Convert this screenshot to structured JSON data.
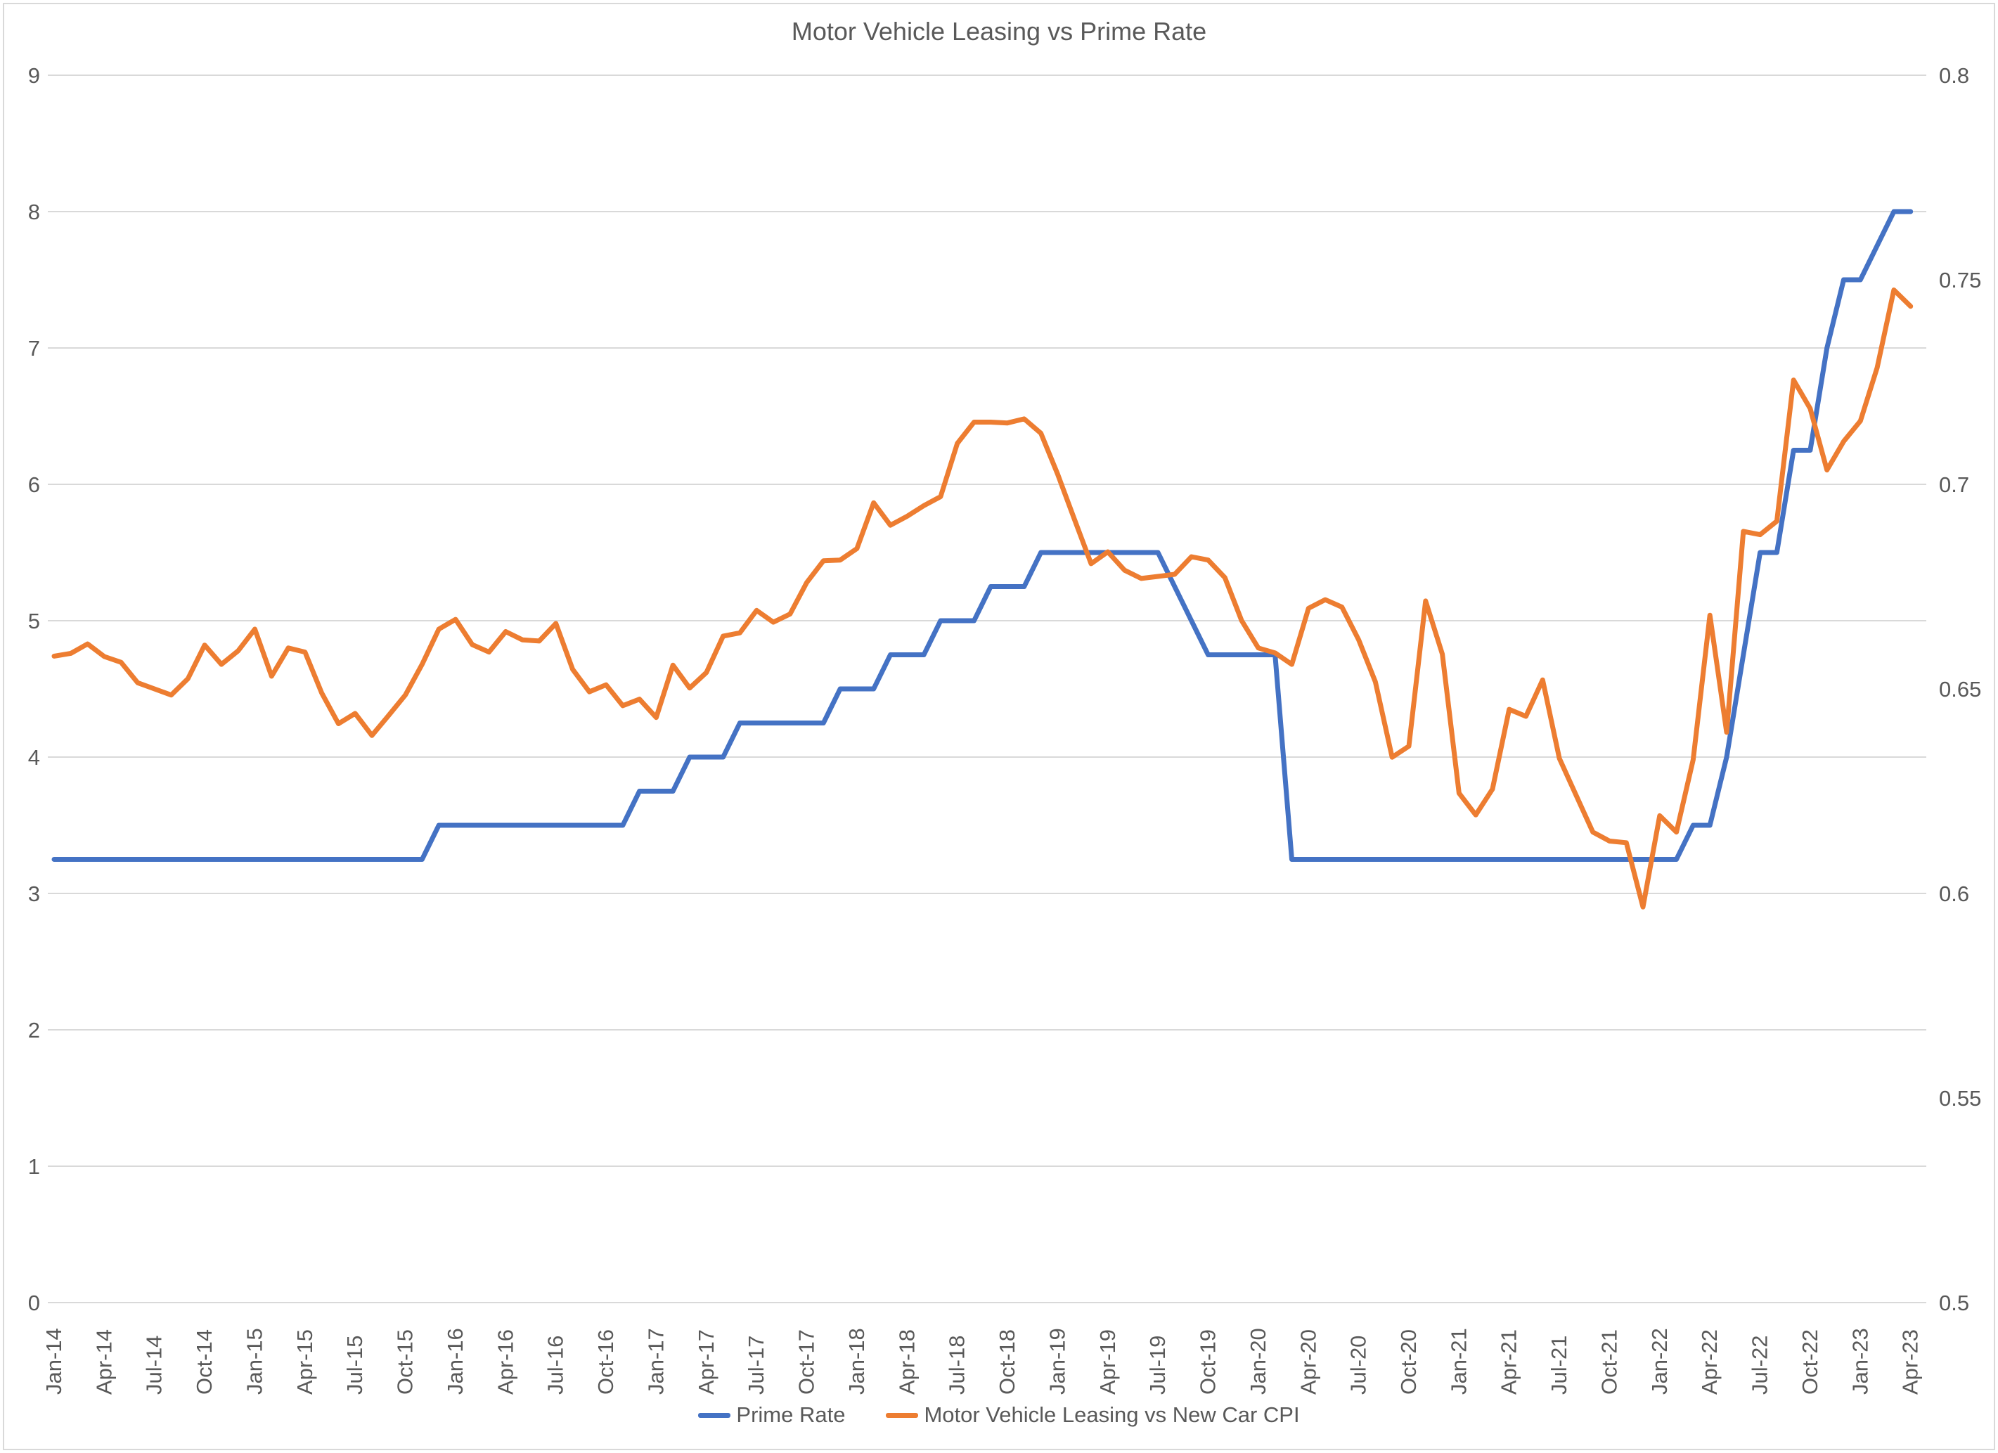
{
  "page": {
    "background": "#FFFFFF",
    "border_color": "#D9D9D9"
  },
  "chart_data": {
    "type": "line",
    "title": "Motor Vehicle Leasing vs Prime Rate",
    "grid": true,
    "legend_position": "bottom",
    "text_color": "#595959",
    "grid_color": "#D9D9D9",
    "months": [
      "Jan-14",
      "Feb-14",
      "Mar-14",
      "Apr-14",
      "May-14",
      "Jun-14",
      "Jul-14",
      "Aug-14",
      "Sep-14",
      "Oct-14",
      "Nov-14",
      "Dec-14",
      "Jan-15",
      "Feb-15",
      "Mar-15",
      "Apr-15",
      "May-15",
      "Jun-15",
      "Jul-15",
      "Aug-15",
      "Sep-15",
      "Oct-15",
      "Nov-15",
      "Dec-15",
      "Jan-16",
      "Feb-16",
      "Mar-16",
      "Apr-16",
      "May-16",
      "Jun-16",
      "Jul-16",
      "Aug-16",
      "Sep-16",
      "Oct-16",
      "Nov-16",
      "Dec-16",
      "Jan-17",
      "Feb-17",
      "Mar-17",
      "Apr-17",
      "May-17",
      "Jun-17",
      "Jul-17",
      "Aug-17",
      "Sep-17",
      "Oct-17",
      "Nov-17",
      "Dec-17",
      "Jan-18",
      "Feb-18",
      "Mar-18",
      "Apr-18",
      "May-18",
      "Jun-18",
      "Jul-18",
      "Aug-18",
      "Sep-18",
      "Oct-18",
      "Nov-18",
      "Dec-18",
      "Jan-19",
      "Feb-19",
      "Mar-19",
      "Apr-19",
      "May-19",
      "Jun-19",
      "Jul-19",
      "Aug-19",
      "Sep-19",
      "Oct-19",
      "Nov-19",
      "Dec-19",
      "Jan-20",
      "Feb-20",
      "Mar-20",
      "Apr-20",
      "May-20",
      "Jun-20",
      "Jul-20",
      "Aug-20",
      "Sep-20",
      "Oct-20",
      "Nov-20",
      "Dec-20",
      "Jan-21",
      "Feb-21",
      "Mar-21",
      "Apr-21",
      "May-21",
      "Jun-21",
      "Jul-21",
      "Aug-21",
      "Sep-21",
      "Oct-21",
      "Nov-21",
      "Dec-21",
      "Jan-22",
      "Feb-22",
      "Mar-22",
      "Apr-22",
      "May-22",
      "Jun-22",
      "Jul-22",
      "Aug-22",
      "Sep-22",
      "Oct-22",
      "Nov-22",
      "Dec-22",
      "Jan-23",
      "Feb-23",
      "Mar-23",
      "Apr-23"
    ],
    "x_tick_labels": [
      "Jan-14",
      "Apr-14",
      "Jul-14",
      "Oct-14",
      "Jan-15",
      "Apr-15",
      "Jul-15",
      "Oct-15",
      "Jan-16",
      "Apr-16",
      "Jul-16",
      "Oct-16",
      "Jan-17",
      "Apr-17",
      "Jul-17",
      "Oct-17",
      "Jan-18",
      "Apr-18",
      "Jul-18",
      "Oct-18",
      "Jan-19",
      "Apr-19",
      "Jul-19",
      "Oct-19",
      "Jan-20",
      "Apr-20",
      "Jul-20",
      "Oct-20",
      "Jan-21",
      "Apr-21",
      "Jul-21",
      "Oct-21",
      "Jan-22",
      "Apr-22",
      "Jul-22",
      "Oct-22",
      "Jan-23",
      "Apr-23"
    ],
    "left_axis": {
      "min": 0,
      "max": 9,
      "ticks": [
        "0",
        "1",
        "2",
        "3",
        "4",
        "5",
        "6",
        "7",
        "8",
        "9"
      ]
    },
    "right_axis": {
      "min": 0.5,
      "max": 0.8,
      "ticks": [
        "0.5",
        "0.55",
        "0.6",
        "0.65",
        "0.7",
        "0.75",
        "0.8"
      ]
    },
    "series": [
      {
        "name": "Prime Rate",
        "color": "#4472C4",
        "axis": "left",
        "values": [
          3.25,
          3.25,
          3.25,
          3.25,
          3.25,
          3.25,
          3.25,
          3.25,
          3.25,
          3.25,
          3.25,
          3.25,
          3.25,
          3.25,
          3.25,
          3.25,
          3.25,
          3.25,
          3.25,
          3.25,
          3.25,
          3.25,
          3.25,
          3.5,
          3.5,
          3.5,
          3.5,
          3.5,
          3.5,
          3.5,
          3.5,
          3.5,
          3.5,
          3.5,
          3.5,
          3.75,
          3.75,
          3.75,
          4,
          4,
          4,
          4.25,
          4.25,
          4.25,
          4.25,
          4.25,
          4.25,
          4.5,
          4.5,
          4.5,
          4.75,
          4.75,
          4.75,
          5,
          5,
          5,
          5.25,
          5.25,
          5.25,
          5.5,
          5.5,
          5.5,
          5.5,
          5.5,
          5.5,
          5.5,
          5.5,
          5.25,
          5,
          4.75,
          4.75,
          4.75,
          4.75,
          4.75,
          3.25,
          3.25,
          3.25,
          3.25,
          3.25,
          3.25,
          3.25,
          3.25,
          3.25,
          3.25,
          3.25,
          3.25,
          3.25,
          3.25,
          3.25,
          3.25,
          3.25,
          3.25,
          3.25,
          3.25,
          3.25,
          3.25,
          3.25,
          3.25,
          3.5,
          3.5,
          4,
          4.75,
          5.5,
          5.5,
          6.25,
          6.25,
          7,
          7.5,
          7.5,
          7.75,
          8,
          8
        ]
      },
      {
        "name": "Motor Vehicle Leasing vs New Car CPI",
        "color": "#ED7D31",
        "axis": "right",
        "values": [
          0.658,
          0.6587,
          0.661,
          0.6579,
          0.6565,
          0.6515,
          0.65,
          0.6485,
          0.6525,
          0.6607,
          0.656,
          0.6593,
          0.6646,
          0.6531,
          0.66,
          0.659,
          0.649,
          0.6415,
          0.644,
          0.6386,
          0.6435,
          0.6485,
          0.656,
          0.6646,
          0.667,
          0.6608,
          0.659,
          0.664,
          0.662,
          0.6617,
          0.666,
          0.6548,
          0.6493,
          0.651,
          0.6459,
          0.6475,
          0.643,
          0.6558,
          0.6502,
          0.654,
          0.6629,
          0.6637,
          0.6692,
          0.6663,
          0.6683,
          0.676,
          0.6813,
          0.6815,
          0.6843,
          0.6955,
          0.69,
          0.6922,
          0.6948,
          0.697,
          0.71,
          0.7152,
          0.7152,
          0.715,
          0.716,
          0.7125,
          0.7025,
          0.6915,
          0.6806,
          0.6835,
          0.679,
          0.677,
          0.6775,
          0.678,
          0.6823,
          0.6815,
          0.6772,
          0.6667,
          0.66,
          0.6588,
          0.656,
          0.6697,
          0.6718,
          0.67,
          0.662,
          0.6517,
          0.6333,
          0.636,
          0.6715,
          0.6585,
          0.6245,
          0.6192,
          0.6255,
          0.645,
          0.6433,
          0.6522,
          0.633,
          0.624,
          0.615,
          0.6128,
          0.6124,
          0.5967,
          0.619,
          0.615,
          0.6327,
          0.668,
          0.6394,
          0.6885,
          0.6877,
          0.691,
          0.7255,
          0.7185,
          0.7035,
          0.7105,
          0.7155,
          0.7285,
          0.7475,
          0.7435
        ]
      }
    ]
  }
}
